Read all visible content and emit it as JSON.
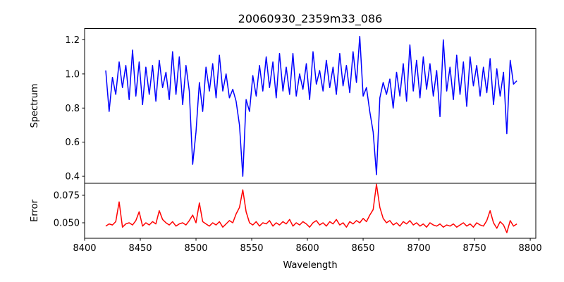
{
  "chart_data": [
    {
      "type": "line",
      "title": "20060930_2359m33_086",
      "xlabel": "",
      "ylabel": "Spectrum",
      "xlim": [
        8400,
        8805
      ],
      "ylim": [
        0.359,
        1.266
      ],
      "xticks": [],
      "yticks": [
        0.4,
        0.6,
        0.8,
        1.0,
        1.2
      ],
      "ytick_labels": [
        "0.4",
        "0.6",
        "0.8",
        "1.0",
        "1.2"
      ],
      "grid": false,
      "series": [
        {
          "name": "Spectrum",
          "color": "#0000ff",
          "x_start": 8419,
          "x_step": 3,
          "values": [
            1.02,
            0.78,
            0.98,
            0.88,
            1.07,
            0.92,
            1.05,
            0.85,
            1.14,
            0.87,
            1.07,
            0.82,
            1.04,
            0.88,
            1.05,
            0.84,
            1.08,
            0.92,
            1.01,
            0.85,
            1.13,
            0.88,
            1.1,
            0.82,
            1.05,
            0.9,
            0.47,
            0.66,
            0.95,
            0.78,
            1.04,
            0.9,
            1.06,
            0.86,
            1.11,
            0.9,
            1.0,
            0.86,
            0.91,
            0.84,
            0.7,
            0.4,
            0.85,
            0.78,
            0.99,
            0.87,
            1.05,
            0.9,
            1.1,
            0.92,
            1.07,
            0.86,
            1.12,
            0.9,
            1.04,
            0.88,
            1.12,
            0.87,
            1.0,
            0.91,
            1.06,
            0.85,
            1.13,
            0.94,
            1.02,
            0.9,
            1.08,
            0.92,
            1.04,
            0.88,
            1.12,
            0.93,
            1.05,
            0.89,
            1.13,
            0.95,
            1.22,
            0.87,
            0.92,
            0.78,
            0.66,
            0.41,
            0.86,
            0.95,
            0.88,
            0.97,
            0.8,
            1.01,
            0.87,
            1.06,
            0.84,
            1.17,
            0.9,
            1.08,
            0.86,
            1.1,
            0.91,
            1.06,
            0.87,
            1.02,
            0.75,
            1.2,
            0.9,
            1.04,
            0.85,
            1.11,
            0.88,
            1.07,
            0.81,
            1.1,
            0.93,
            1.05,
            0.87,
            1.04,
            0.89,
            1.09,
            0.82,
            1.03,
            0.87,
            1.01,
            0.65,
            1.08,
            0.94,
            0.96
          ]
        }
      ]
    },
    {
      "type": "line",
      "title": "",
      "xlabel": "Wavelength",
      "ylabel": "Error",
      "xlim": [
        8400,
        8805
      ],
      "ylim": [
        0.0359,
        0.0859
      ],
      "xticks": [
        8400,
        8450,
        8500,
        8550,
        8600,
        8650,
        8700,
        8750,
        8800
      ],
      "xtick_labels": [
        "8400",
        "8450",
        "8500",
        "8550",
        "8600",
        "8650",
        "8700",
        "8750",
        "8800"
      ],
      "yticks": [
        0.05,
        0.075
      ],
      "ytick_labels": [
        "0.050",
        "0.075"
      ],
      "grid": false,
      "series": [
        {
          "name": "Error",
          "color": "#ff0000",
          "x_start": 8419,
          "x_step": 3,
          "values": [
            0.047,
            0.049,
            0.048,
            0.051,
            0.069,
            0.046,
            0.049,
            0.05,
            0.048,
            0.052,
            0.06,
            0.047,
            0.05,
            0.048,
            0.051,
            0.049,
            0.061,
            0.053,
            0.05,
            0.048,
            0.051,
            0.047,
            0.049,
            0.05,
            0.048,
            0.052,
            0.057,
            0.05,
            0.068,
            0.051,
            0.049,
            0.047,
            0.05,
            0.048,
            0.051,
            0.046,
            0.049,
            0.052,
            0.05,
            0.058,
            0.064,
            0.08,
            0.06,
            0.05,
            0.048,
            0.051,
            0.047,
            0.05,
            0.049,
            0.052,
            0.047,
            0.05,
            0.048,
            0.051,
            0.049,
            0.053,
            0.047,
            0.05,
            0.048,
            0.051,
            0.049,
            0.046,
            0.05,
            0.052,
            0.048,
            0.05,
            0.047,
            0.051,
            0.049,
            0.053,
            0.048,
            0.05,
            0.046,
            0.051,
            0.049,
            0.052,
            0.05,
            0.054,
            0.051,
            0.057,
            0.062,
            0.085,
            0.064,
            0.054,
            0.05,
            0.052,
            0.048,
            0.05,
            0.047,
            0.051,
            0.049,
            0.052,
            0.048,
            0.05,
            0.047,
            0.049,
            0.046,
            0.05,
            0.048,
            0.047,
            0.049,
            0.046,
            0.048,
            0.047,
            0.049,
            0.046,
            0.048,
            0.05,
            0.047,
            0.049,
            0.046,
            0.05,
            0.048,
            0.047,
            0.052,
            0.061,
            0.05,
            0.045,
            0.051,
            0.048,
            0.041,
            0.052,
            0.047,
            0.049
          ]
        }
      ]
    }
  ]
}
